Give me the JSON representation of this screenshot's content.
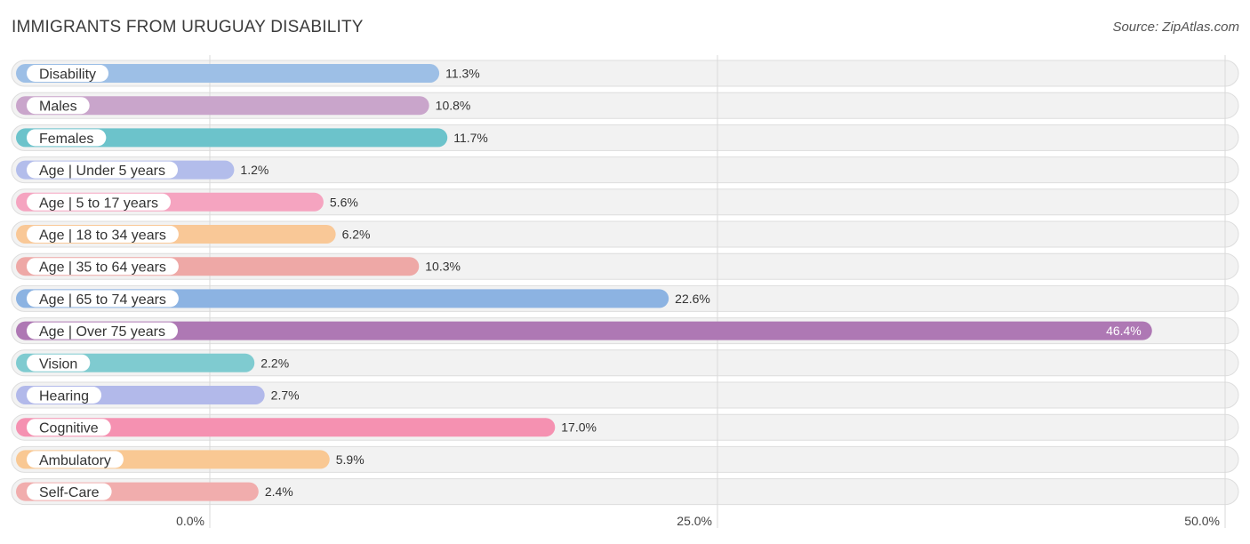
{
  "header": {
    "title": "IMMIGRANTS FROM URUGUAY DISABILITY",
    "source": "Source: ZipAtlas.com"
  },
  "chart_data": {
    "type": "bar",
    "orientation": "horizontal",
    "title": "IMMIGRANTS FROM URUGUAY DISABILITY",
    "xlabel": "",
    "ylabel": "",
    "xlim": [
      0,
      50
    ],
    "ticks": [
      0,
      25,
      50
    ],
    "tick_labels": [
      "0.0%",
      "25.0%",
      "50.0%"
    ],
    "categories": [
      "Disability",
      "Males",
      "Females",
      "Age | Under 5 years",
      "Age | 5 to 17 years",
      "Age | 18 to 34 years",
      "Age | 35 to 64 years",
      "Age | 65 to 74 years",
      "Age | Over 75 years",
      "Vision",
      "Hearing",
      "Cognitive",
      "Ambulatory",
      "Self-Care"
    ],
    "values": [
      11.3,
      10.8,
      11.7,
      1.2,
      5.6,
      6.2,
      10.3,
      22.6,
      46.4,
      2.2,
      2.7,
      17.0,
      5.9,
      2.4
    ],
    "value_labels": [
      "11.3%",
      "10.8%",
      "11.7%",
      "1.2%",
      "5.6%",
      "6.2%",
      "10.3%",
      "22.6%",
      "46.4%",
      "2.2%",
      "2.7%",
      "17.0%",
      "5.9%",
      "2.4%"
    ],
    "colors": [
      "#9dbfe6",
      "#c9a5cb",
      "#6cc3cb",
      "#b3bdeb",
      "#f5a4c0",
      "#f9c897",
      "#eea8a6",
      "#8cb3e2",
      "#ae78b4",
      "#7fcbd0",
      "#b2b9ea",
      "#f591b1",
      "#f9c893",
      "#f1adad"
    ]
  }
}
